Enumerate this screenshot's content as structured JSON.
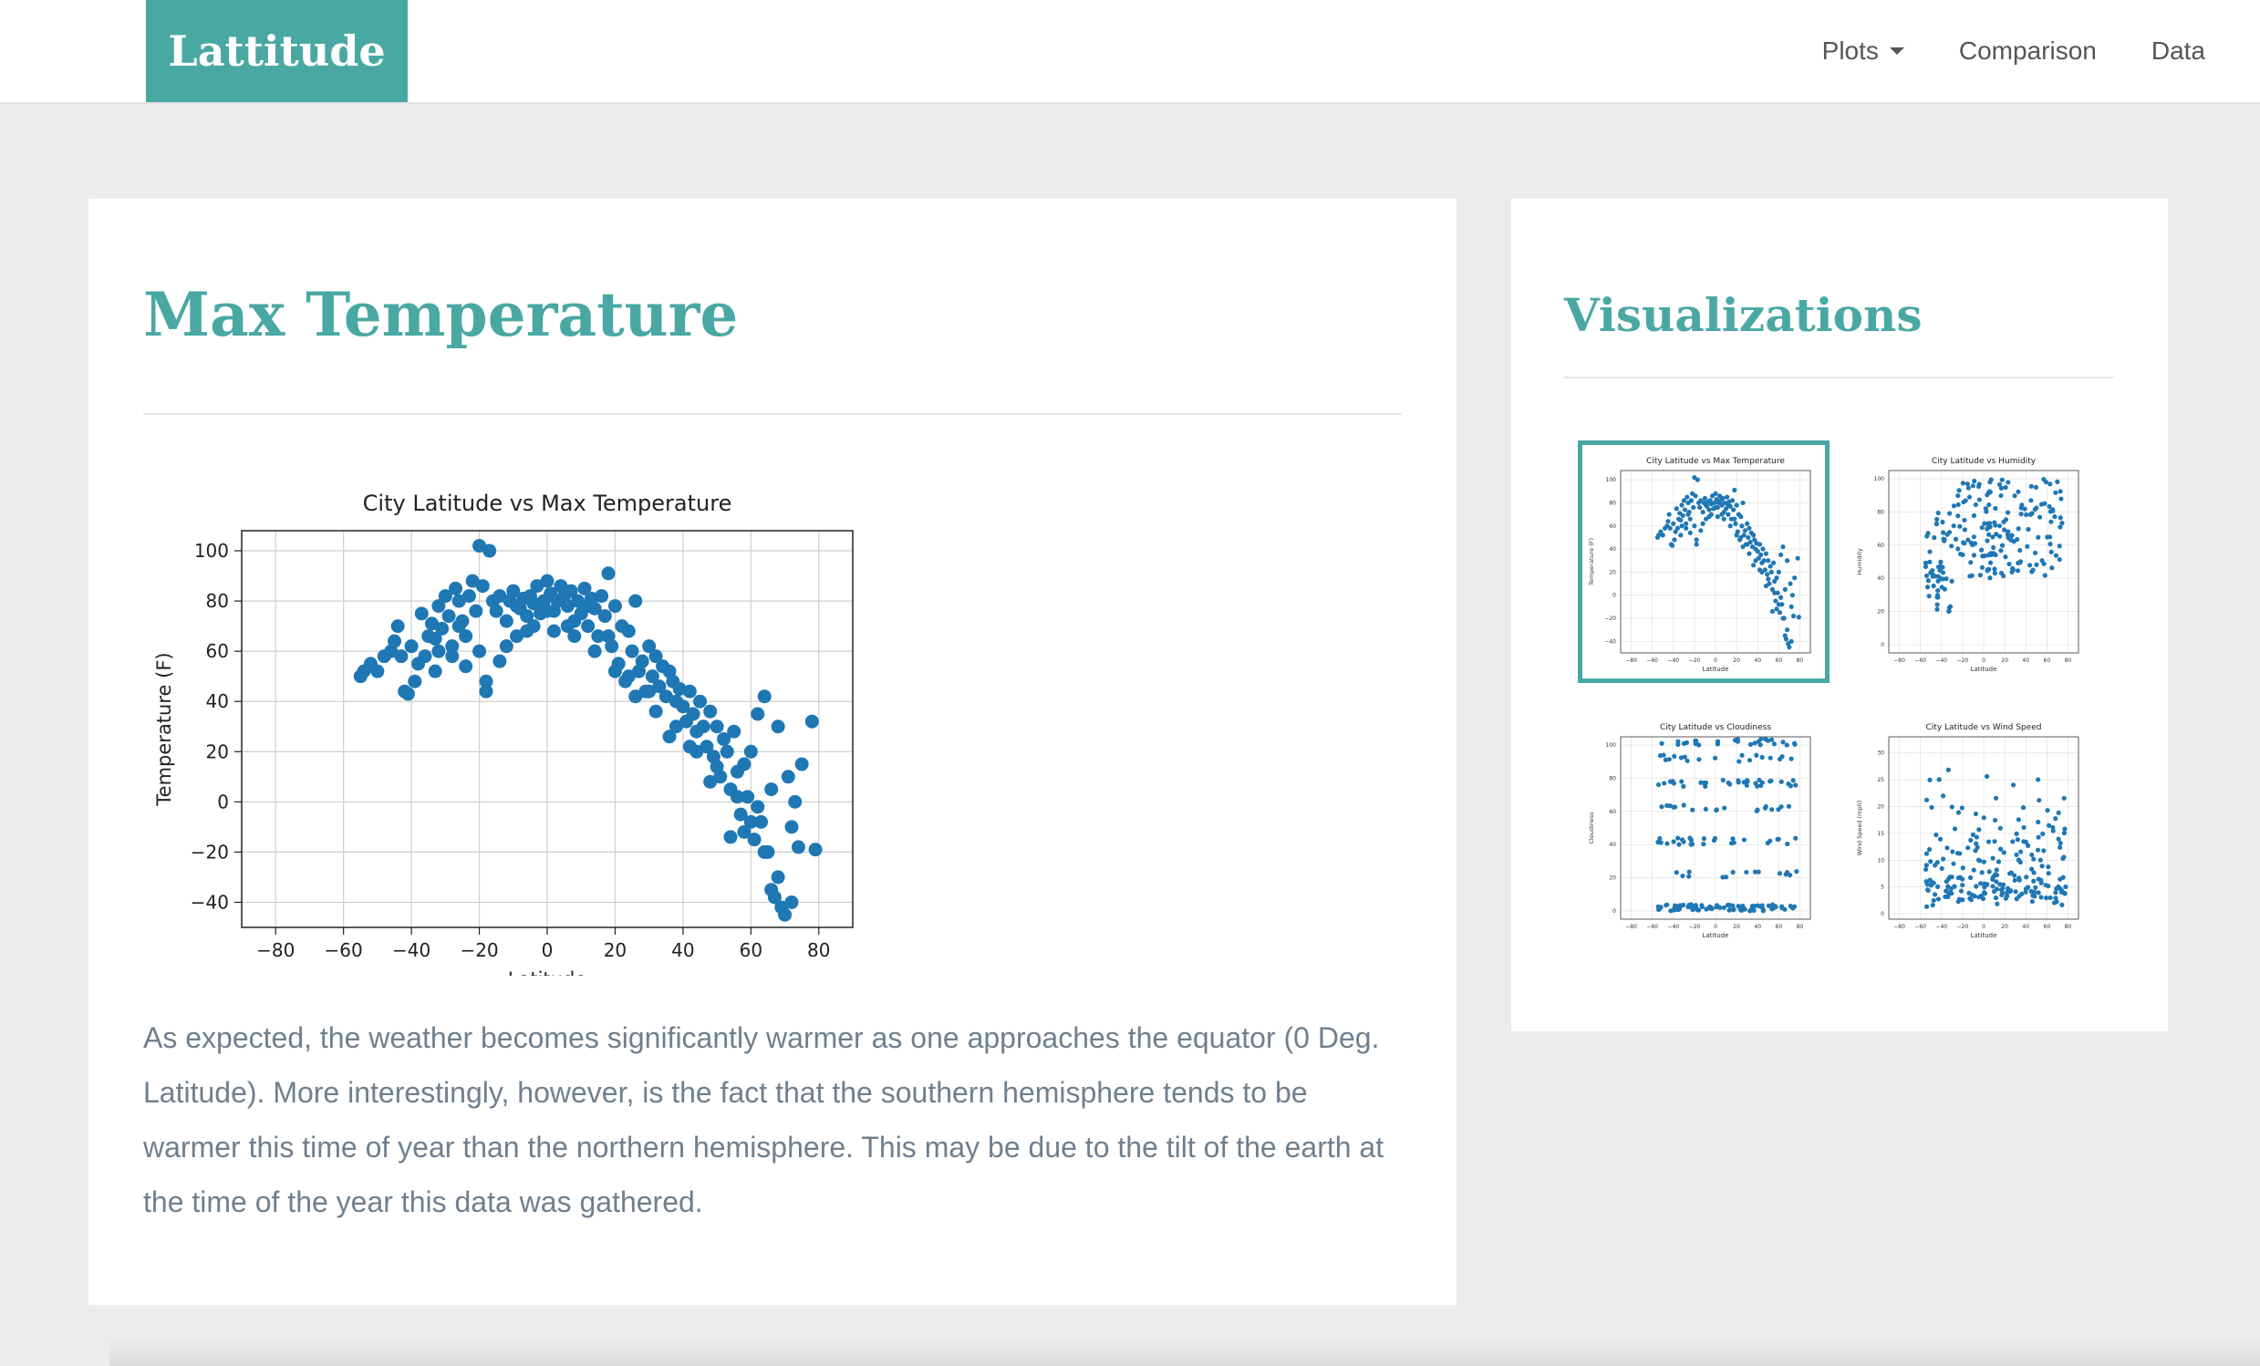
{
  "navbar": {
    "brand": "Lattitude",
    "links": [
      {
        "label": "Plots",
        "dropdown": true
      },
      {
        "label": "Comparison"
      },
      {
        "label": "Data"
      }
    ]
  },
  "colors": {
    "accent": "#4aa8a3",
    "marker": "#1f77b4",
    "text_muted": "#6f7f8e",
    "page_bg": "#ececec"
  },
  "main": {
    "title": "Max Temperature",
    "description": "As expected, the weather becomes significantly warmer as one approaches the equator (0 Deg. Latitude). More interestingly, however, is the fact that the southern hemisphere tends to be warmer this time of year than the northern hemisphere. This may be due to the tilt of the earth at the time of the year this data was gathered."
  },
  "sidebar": {
    "title": "Visualizations"
  },
  "chart_data": [
    {
      "type": "scatter",
      "title": "City Latitude vs Max Temperature",
      "xlabel": "Latitude",
      "ylabel": "Temperature (F)",
      "xlim": [
        -90,
        90
      ],
      "ylim": [
        -50,
        108
      ],
      "xticks": [
        -80,
        -60,
        -40,
        -20,
        0,
        20,
        40,
        60,
        80
      ],
      "yticks": [
        100,
        80,
        60,
        40,
        20,
        0,
        -20,
        -40
      ],
      "grid": true,
      "points": [
        [
          -55,
          50
        ],
        [
          -54,
          52
        ],
        [
          -52,
          55
        ],
        [
          -46,
          60
        ],
        [
          -45,
          64
        ],
        [
          -44,
          70
        ],
        [
          -43,
          58
        ],
        [
          -42,
          44
        ],
        [
          -41,
          43
        ],
        [
          -40,
          62
        ],
        [
          -38,
          55
        ],
        [
          -37,
          75
        ],
        [
          -36,
          58
        ],
        [
          -35,
          66
        ],
        [
          -34,
          71
        ],
        [
          -33,
          65
        ],
        [
          -32,
          78
        ],
        [
          -31,
          69
        ],
        [
          -30,
          82
        ],
        [
          -29,
          74
        ],
        [
          -28,
          58
        ],
        [
          -27,
          85
        ],
        [
          -26,
          80
        ],
        [
          -25,
          72
        ],
        [
          -24,
          66
        ],
        [
          -23,
          82
        ],
        [
          -22,
          88
        ],
        [
          -21,
          76
        ],
        [
          -20,
          102
        ],
        [
          -19,
          86
        ],
        [
          -18,
          48
        ],
        [
          -17,
          100
        ],
        [
          -16,
          80
        ],
        [
          -15,
          76
        ],
        [
          -14,
          82
        ],
        [
          -12,
          72
        ],
        [
          -11,
          80
        ],
        [
          -10,
          84
        ],
        [
          -9,
          78
        ],
        [
          -8,
          77
        ],
        [
          -7,
          81
        ],
        [
          -6,
          74
        ],
        [
          -5,
          82
        ],
        [
          -4,
          79
        ],
        [
          -3,
          86
        ],
        [
          -2,
          75
        ],
        [
          -1,
          80
        ],
        [
          0,
          88
        ],
        [
          1,
          83
        ],
        [
          2,
          76
        ],
        [
          3,
          80
        ],
        [
          4,
          86
        ],
        [
          5,
          82
        ],
        [
          6,
          78
        ],
        [
          7,
          84
        ],
        [
          8,
          72
        ],
        [
          9,
          80
        ],
        [
          10,
          75
        ],
        [
          11,
          85
        ],
        [
          12,
          70
        ],
        [
          13,
          81
        ],
        [
          14,
          77
        ],
        [
          15,
          66
        ],
        [
          16,
          82
        ],
        [
          17,
          74
        ],
        [
          18,
          91
        ],
        [
          19,
          62
        ],
        [
          20,
          78
        ],
        [
          21,
          55
        ],
        [
          22,
          70
        ],
        [
          23,
          48
        ],
        [
          24,
          68
        ],
        [
          25,
          60
        ],
        [
          26,
          80
        ],
        [
          27,
          52
        ],
        [
          28,
          56
        ],
        [
          29,
          44
        ],
        [
          30,
          62
        ],
        [
          31,
          50
        ],
        [
          32,
          58
        ],
        [
          33,
          46
        ],
        [
          34,
          54
        ],
        [
          35,
          42
        ],
        [
          36,
          52
        ],
        [
          37,
          48
        ],
        [
          38,
          40
        ],
        [
          39,
          45
        ],
        [
          40,
          38
        ],
        [
          41,
          32
        ],
        [
          42,
          44
        ],
        [
          43,
          35
        ],
        [
          44,
          28
        ],
        [
          45,
          40
        ],
        [
          46,
          30
        ],
        [
          47,
          22
        ],
        [
          48,
          36
        ],
        [
          49,
          18
        ],
        [
          50,
          30
        ],
        [
          51,
          10
        ],
        [
          52,
          25
        ],
        [
          53,
          20
        ],
        [
          54,
          5
        ],
        [
          55,
          28
        ],
        [
          56,
          12
        ],
        [
          57,
          -5
        ],
        [
          58,
          15
        ],
        [
          59,
          2
        ],
        [
          60,
          20
        ],
        [
          61,
          -15
        ],
        [
          62,
          35
        ],
        [
          63,
          -8
        ],
        [
          64,
          42
        ],
        [
          65,
          -20
        ],
        [
          66,
          5
        ],
        [
          67,
          -38
        ],
        [
          68,
          30
        ],
        [
          69,
          -42
        ],
        [
          70,
          -45
        ],
        [
          71,
          10
        ],
        [
          72,
          -10
        ],
        [
          73,
          0
        ],
        [
          74,
          -18
        ],
        [
          75,
          15
        ],
        [
          78,
          32
        ],
        [
          79,
          -19
        ],
        [
          -39,
          48
        ],
        [
          -33,
          52
        ],
        [
          -28,
          62
        ],
        [
          -24,
          54
        ],
        [
          -18,
          44
        ],
        [
          -14,
          56
        ],
        [
          -9,
          66
        ],
        [
          -4,
          70
        ],
        [
          2,
          68
        ],
        [
          8,
          66
        ],
        [
          14,
          60
        ],
        [
          20,
          52
        ],
        [
          26,
          42
        ],
        [
          32,
          36
        ],
        [
          38,
          30
        ],
        [
          44,
          20
        ],
        [
          50,
          14
        ],
        [
          56,
          2
        ],
        [
          60,
          -8
        ],
        [
          64,
          -20
        ],
        [
          68,
          -30
        ],
        [
          72,
          -40
        ],
        [
          66,
          -35
        ],
        [
          62,
          -2
        ],
        [
          58,
          -12
        ],
        [
          54,
          -14
        ],
        [
          48,
          8
        ],
        [
          42,
          22
        ],
        [
          36,
          26
        ],
        [
          30,
          44
        ],
        [
          24,
          50
        ],
        [
          18,
          66
        ],
        [
          12,
          78
        ],
        [
          6,
          70
        ],
        [
          0,
          76
        ],
        [
          -6,
          68
        ],
        [
          -12,
          62
        ],
        [
          -20,
          60
        ],
        [
          -26,
          70
        ],
        [
          -32,
          60
        ],
        [
          -50,
          52
        ],
        [
          -48,
          58
        ]
      ]
    }
  ],
  "thumbnails": [
    {
      "title": "City Latitude vs Max Temperature",
      "ylabel": "Temperature (F)",
      "xlabel": "Latitude",
      "active": true
    },
    {
      "title": "City Latitude vs Humidity",
      "ylabel": "Humidity",
      "xlabel": "Latitude",
      "active": false
    },
    {
      "title": "City Latitude vs Cloudiness",
      "ylabel": "Cloudiness",
      "xlabel": "Latitude",
      "active": false
    },
    {
      "title": "City Latitude vs Wind Speed",
      "ylabel": "Wind Speed (mph)",
      "xlabel": "Latitude",
      "active": false
    }
  ]
}
